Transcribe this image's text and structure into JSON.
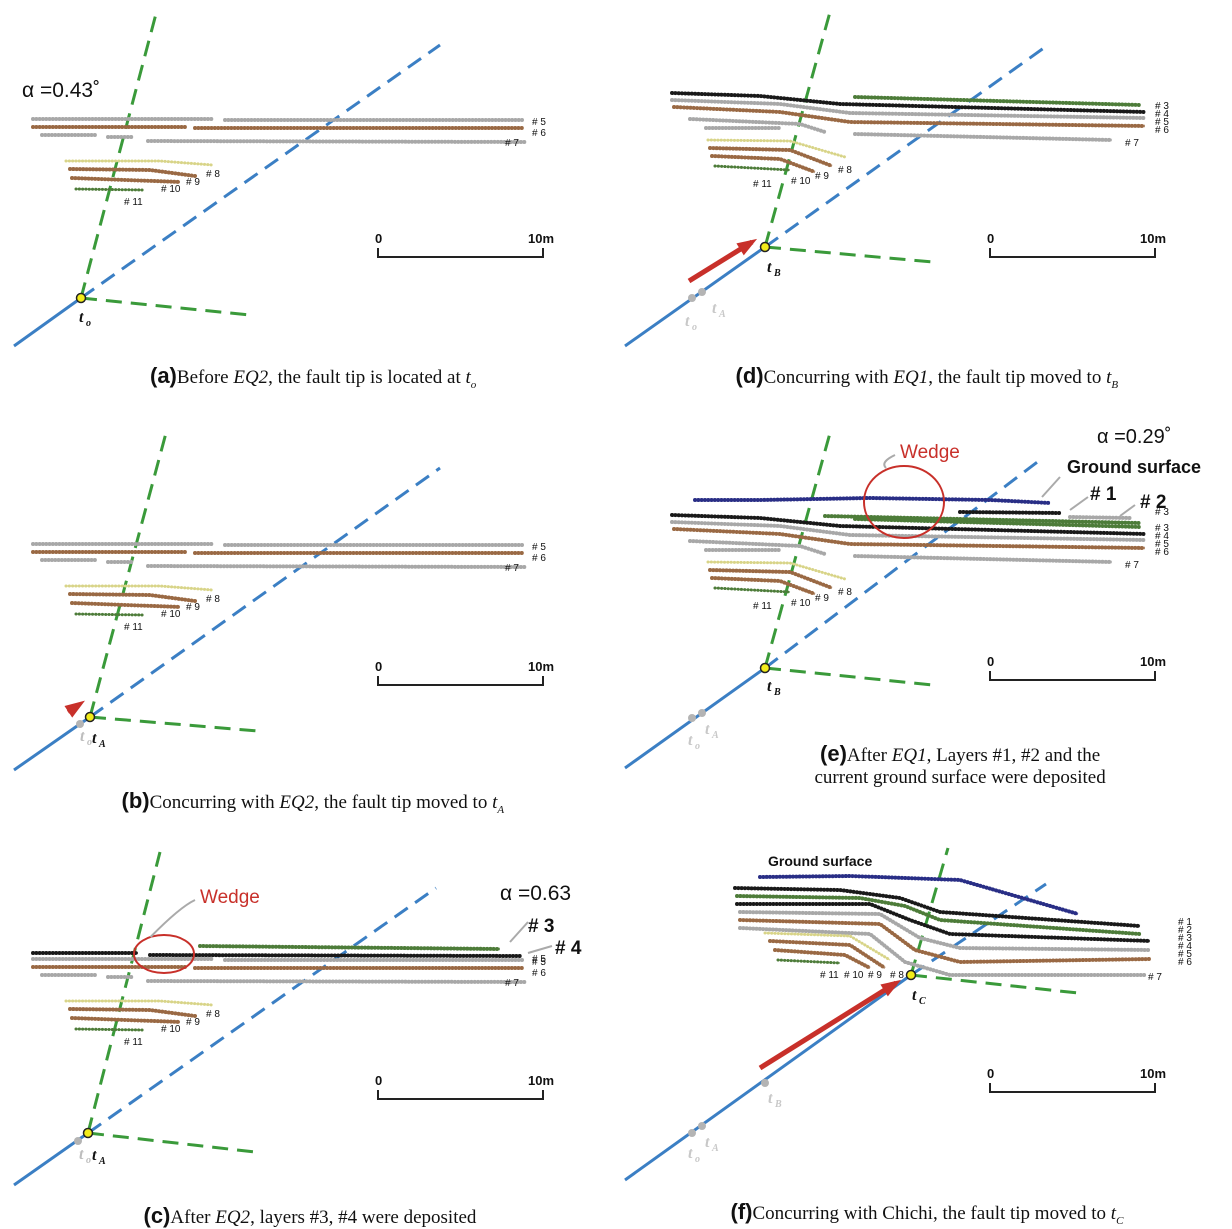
{
  "scale_bar": {
    "start": "0",
    "end": "10m"
  },
  "panels": [
    {
      "id": "a",
      "alpha": "α =0.43˚",
      "layers": {
        "l5": "# 5",
        "l6": "# 6",
        "l7": "# 7",
        "l8": "# 8",
        "l9": "# 9",
        "l10": "# 10",
        "l11": "# 11"
      },
      "tips": {
        "current": "t",
        "current_sub": "o"
      },
      "caption": {
        "label": "(a)",
        "pre": "Before ",
        "eq": "EQ2",
        "post": ", the fault tip is located at ",
        "t": "t",
        "sub": "o",
        "line2": ""
      }
    },
    {
      "id": "b",
      "layers": {
        "l5": "# 5",
        "l6": "# 6",
        "l7": "# 7",
        "l8": "# 8",
        "l9": "# 9",
        "l10": "# 10",
        "l11": "# 11"
      },
      "tips": {
        "old": "t",
        "old_sub": "o",
        "current": "t",
        "current_sub": "A"
      },
      "caption": {
        "label": "(b)",
        "pre": "Concurring with ",
        "eq": "EQ2",
        "post": ", the fault tip moved to ",
        "t": "t",
        "sub": "A",
        "line2": ""
      }
    },
    {
      "id": "c",
      "alpha": "α =0.63",
      "wedge": "Wedge",
      "layers": {
        "l3": "# 3",
        "l4": "# 4",
        "l5": "# 5",
        "l6": "# 6",
        "l7": "# 7",
        "l8": "# 8",
        "l9": "# 9",
        "l10": "# 10",
        "l11": "# 11"
      },
      "tips": {
        "old": "t",
        "old_sub": "o",
        "current": "t",
        "current_sub": "A"
      },
      "caption": {
        "label": "(c)",
        "pre": "After ",
        "eq": "EQ2",
        "post": ", layers  #3, #4 were deposited",
        "t": "",
        "sub": "",
        "line2": ""
      }
    },
    {
      "id": "d",
      "layers": {
        "l3": "# 3",
        "l4": "# 4",
        "l5": "# 5",
        "l6": "# 6",
        "l7": "# 7",
        "l8": "# 8",
        "l9": "# 9",
        "l10": "# 10",
        "l11": "# 11"
      },
      "tips": {
        "old": "t",
        "old_sub": "o",
        "old2": "t",
        "old2_sub": "A",
        "current": "t",
        "current_sub": "B"
      },
      "caption": {
        "label": "(d)",
        "pre": "Concurring with ",
        "eq": "EQ1",
        "post": ", the fault tip moved to ",
        "t": "t",
        "sub": "B",
        "line2": ""
      }
    },
    {
      "id": "e",
      "alpha": "α =0.29˚",
      "wedge": "Wedge",
      "ground": "Ground surface",
      "layers": {
        "l1": "# 1",
        "l2": "# 2",
        "l3": "# 3",
        "l4": "# 4",
        "l5": "# 5",
        "l6": "# 6",
        "l7": "# 7",
        "l8": "# 8",
        "l9": "# 9",
        "l10": "# 10",
        "l11": "# 11"
      },
      "tips": {
        "old": "t",
        "old_sub": "o",
        "old2": "t",
        "old2_sub": "A",
        "current": "t",
        "current_sub": "B"
      },
      "caption": {
        "label": "(e)",
        "pre": "After ",
        "eq": "EQ1",
        "post": ", Layers #1, #2 and the",
        "t": "",
        "sub": "",
        "line2": "current ground surface were deposited"
      }
    },
    {
      "id": "f",
      "ground": "Ground surface",
      "layers": {
        "l1": "# 1",
        "l2": "# 2",
        "l3": "# 3",
        "l4": "# 4",
        "l5": "# 5",
        "l6": "# 6",
        "l7": "# 7",
        "l8": "# 8",
        "l9": "# 9",
        "l10": "# 10",
        "l11": "# 11"
      },
      "tips": {
        "old": "t",
        "old_sub": "o",
        "old2": "t",
        "old2_sub": "A",
        "old3": "t",
        "old3_sub": "B",
        "current": "t",
        "current_sub": "C"
      },
      "caption": {
        "label": "(f)",
        "pre": "Concurring with Chichi, the fault tip moved to ",
        "eq": "",
        "post": "",
        "t": "t",
        "sub": "C",
        "line2": ""
      }
    }
  ],
  "colors": {
    "fault": "#3b7fc4",
    "thrust": "#3a9a3a",
    "arrow": "#c8302a",
    "wedge": "#c8302a",
    "tip": "#f2ec1a",
    "grey": "#a8a8a8",
    "brown": "#9a6a44",
    "green": "#4e7c3a",
    "black": "#1a1a1a",
    "yellow": "#d8d488",
    "navy": "#2a2f86"
  }
}
